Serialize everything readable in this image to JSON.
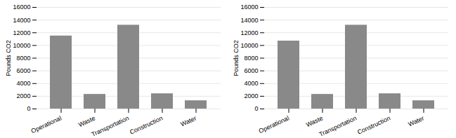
{
  "chart_data": [
    {
      "type": "bar",
      "categories": [
        "Operational",
        "Waste",
        "Transportation",
        "Construction",
        "Water"
      ],
      "values": [
        11500,
        2300,
        13200,
        2400,
        1300
      ],
      "color": "#898989",
      "ylabel": "Pounds CO2",
      "ylim": [
        0,
        16000
      ],
      "yticks": [
        0,
        2000,
        4000,
        6000,
        8000,
        10000,
        12000,
        14000,
        16000
      ],
      "grid": true
    },
    {
      "type": "bar",
      "categories": [
        "Operational",
        "Waste",
        "Transportation",
        "Construction",
        "Water"
      ],
      "values": [
        10700,
        2300,
        13200,
        2400,
        1300
      ],
      "color": "#898989",
      "ylabel": "Pounds CO2",
      "ylim": [
        0,
        16000
      ],
      "yticks": [
        0,
        2000,
        4000,
        6000,
        8000,
        10000,
        12000,
        14000,
        16000
      ],
      "grid": true
    }
  ]
}
